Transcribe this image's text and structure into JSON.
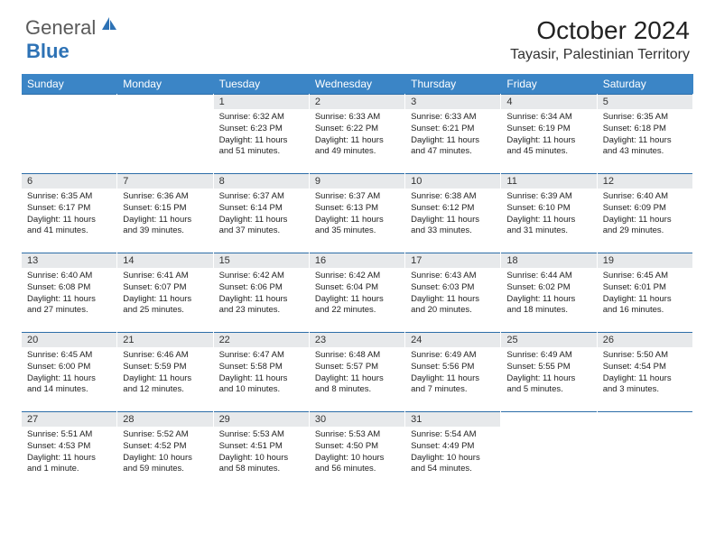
{
  "logo": {
    "general": "General",
    "blue": "Blue"
  },
  "title": "October 2024",
  "location": "Tayasir, Palestinian Territory",
  "colors": {
    "header_bg": "#3b85c6",
    "daynum_bg": "#e7e9eb",
    "border": "#2d6ea8",
    "logo_blue": "#2d72b5",
    "logo_gray": "#5a5a5a"
  },
  "daynames": [
    "Sunday",
    "Monday",
    "Tuesday",
    "Wednesday",
    "Thursday",
    "Friday",
    "Saturday"
  ],
  "weeks": [
    [
      {
        "blank": true
      },
      {
        "blank": true
      },
      {
        "n": 1,
        "sunrise": "6:32 AM",
        "sunset": "6:23 PM",
        "daylight": "11 hours and 51 minutes."
      },
      {
        "n": 2,
        "sunrise": "6:33 AM",
        "sunset": "6:22 PM",
        "daylight": "11 hours and 49 minutes."
      },
      {
        "n": 3,
        "sunrise": "6:33 AM",
        "sunset": "6:21 PM",
        "daylight": "11 hours and 47 minutes."
      },
      {
        "n": 4,
        "sunrise": "6:34 AM",
        "sunset": "6:19 PM",
        "daylight": "11 hours and 45 minutes."
      },
      {
        "n": 5,
        "sunrise": "6:35 AM",
        "sunset": "6:18 PM",
        "daylight": "11 hours and 43 minutes."
      }
    ],
    [
      {
        "n": 6,
        "sunrise": "6:35 AM",
        "sunset": "6:17 PM",
        "daylight": "11 hours and 41 minutes."
      },
      {
        "n": 7,
        "sunrise": "6:36 AM",
        "sunset": "6:15 PM",
        "daylight": "11 hours and 39 minutes."
      },
      {
        "n": 8,
        "sunrise": "6:37 AM",
        "sunset": "6:14 PM",
        "daylight": "11 hours and 37 minutes."
      },
      {
        "n": 9,
        "sunrise": "6:37 AM",
        "sunset": "6:13 PM",
        "daylight": "11 hours and 35 minutes."
      },
      {
        "n": 10,
        "sunrise": "6:38 AM",
        "sunset": "6:12 PM",
        "daylight": "11 hours and 33 minutes."
      },
      {
        "n": 11,
        "sunrise": "6:39 AM",
        "sunset": "6:10 PM",
        "daylight": "11 hours and 31 minutes."
      },
      {
        "n": 12,
        "sunrise": "6:40 AM",
        "sunset": "6:09 PM",
        "daylight": "11 hours and 29 minutes."
      }
    ],
    [
      {
        "n": 13,
        "sunrise": "6:40 AM",
        "sunset": "6:08 PM",
        "daylight": "11 hours and 27 minutes."
      },
      {
        "n": 14,
        "sunrise": "6:41 AM",
        "sunset": "6:07 PM",
        "daylight": "11 hours and 25 minutes."
      },
      {
        "n": 15,
        "sunrise": "6:42 AM",
        "sunset": "6:06 PM",
        "daylight": "11 hours and 23 minutes."
      },
      {
        "n": 16,
        "sunrise": "6:42 AM",
        "sunset": "6:04 PM",
        "daylight": "11 hours and 22 minutes."
      },
      {
        "n": 17,
        "sunrise": "6:43 AM",
        "sunset": "6:03 PM",
        "daylight": "11 hours and 20 minutes."
      },
      {
        "n": 18,
        "sunrise": "6:44 AM",
        "sunset": "6:02 PM",
        "daylight": "11 hours and 18 minutes."
      },
      {
        "n": 19,
        "sunrise": "6:45 AM",
        "sunset": "6:01 PM",
        "daylight": "11 hours and 16 minutes."
      }
    ],
    [
      {
        "n": 20,
        "sunrise": "6:45 AM",
        "sunset": "6:00 PM",
        "daylight": "11 hours and 14 minutes."
      },
      {
        "n": 21,
        "sunrise": "6:46 AM",
        "sunset": "5:59 PM",
        "daylight": "11 hours and 12 minutes."
      },
      {
        "n": 22,
        "sunrise": "6:47 AM",
        "sunset": "5:58 PM",
        "daylight": "11 hours and 10 minutes."
      },
      {
        "n": 23,
        "sunrise": "6:48 AM",
        "sunset": "5:57 PM",
        "daylight": "11 hours and 8 minutes."
      },
      {
        "n": 24,
        "sunrise": "6:49 AM",
        "sunset": "5:56 PM",
        "daylight": "11 hours and 7 minutes."
      },
      {
        "n": 25,
        "sunrise": "6:49 AM",
        "sunset": "5:55 PM",
        "daylight": "11 hours and 5 minutes."
      },
      {
        "n": 26,
        "sunrise": "5:50 AM",
        "sunset": "4:54 PM",
        "daylight": "11 hours and 3 minutes."
      }
    ],
    [
      {
        "n": 27,
        "sunrise": "5:51 AM",
        "sunset": "4:53 PM",
        "daylight": "11 hours and 1 minute."
      },
      {
        "n": 28,
        "sunrise": "5:52 AM",
        "sunset": "4:52 PM",
        "daylight": "10 hours and 59 minutes."
      },
      {
        "n": 29,
        "sunrise": "5:53 AM",
        "sunset": "4:51 PM",
        "daylight": "10 hours and 58 minutes."
      },
      {
        "n": 30,
        "sunrise": "5:53 AM",
        "sunset": "4:50 PM",
        "daylight": "10 hours and 56 minutes."
      },
      {
        "n": 31,
        "sunrise": "5:54 AM",
        "sunset": "4:49 PM",
        "daylight": "10 hours and 54 minutes."
      },
      {
        "blank": true
      },
      {
        "blank": true
      }
    ]
  ]
}
